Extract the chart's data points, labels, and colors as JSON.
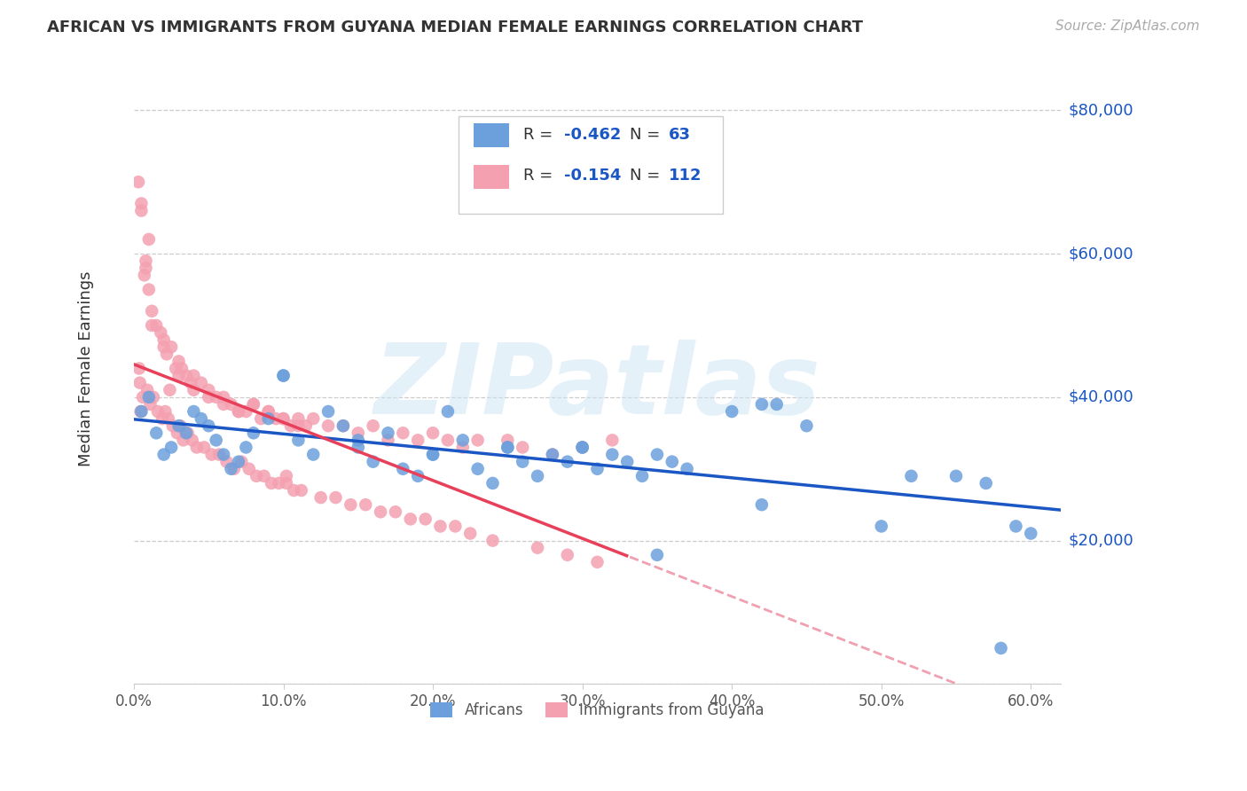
{
  "title": "AFRICAN VS IMMIGRANTS FROM GUYANA MEDIAN FEMALE EARNINGS CORRELATION CHART",
  "source": "Source: ZipAtlas.com",
  "ylabel": "Median Female Earnings",
  "ylabel_ticks": [
    0,
    20000,
    40000,
    60000,
    80000
  ],
  "ylabel_labels": [
    "",
    "$20,000",
    "$40,000",
    "$60,000",
    "$80,000"
  ],
  "xlim": [
    0.0,
    62.0
  ],
  "ylim": [
    0,
    88000
  ],
  "watermark": "ZIPatlas",
  "legend_label1": "Africans",
  "legend_label2": "Immigrants from Guyana",
  "r1": "-0.462",
  "n1": "63",
  "r2": "-0.154",
  "n2": "112",
  "blue_color": "#6ca0dc",
  "blue_dark": "#1a56c4",
  "pink_color": "#f4a0b0",
  "pink_dark": "#e8405a",
  "blue_scatter_x": [
    0.5,
    1.0,
    1.5,
    2.0,
    2.5,
    3.0,
    3.5,
    4.0,
    4.5,
    5.0,
    5.5,
    6.0,
    6.5,
    7.0,
    7.5,
    8.0,
    9.0,
    10.0,
    11.0,
    12.0,
    13.0,
    14.0,
    15.0,
    16.0,
    17.0,
    18.0,
    19.0,
    20.0,
    21.0,
    22.0,
    23.0,
    24.0,
    25.0,
    26.0,
    27.0,
    28.0,
    29.0,
    30.0,
    31.0,
    32.0,
    33.0,
    34.0,
    35.0,
    36.0,
    37.0,
    40.0,
    42.0,
    43.0,
    45.0,
    50.0,
    52.0,
    55.0,
    57.0,
    58.0,
    59.0,
    60.0,
    42.0,
    35.0,
    20.0,
    10.0,
    30.0,
    25.0,
    15.0
  ],
  "blue_scatter_y": [
    38000,
    40000,
    35000,
    32000,
    33000,
    36000,
    35000,
    38000,
    37000,
    36000,
    34000,
    32000,
    30000,
    31000,
    33000,
    35000,
    37000,
    43000,
    34000,
    32000,
    38000,
    36000,
    33000,
    31000,
    35000,
    30000,
    29000,
    32000,
    38000,
    34000,
    30000,
    28000,
    33000,
    31000,
    29000,
    32000,
    31000,
    33000,
    30000,
    32000,
    31000,
    29000,
    32000,
    31000,
    30000,
    38000,
    25000,
    39000,
    36000,
    22000,
    29000,
    29000,
    28000,
    5000,
    22000,
    21000,
    39000,
    18000,
    32000,
    43000,
    33000,
    33000,
    34000
  ],
  "pink_scatter_x": [
    0.3,
    0.5,
    0.7,
    0.8,
    1.0,
    1.2,
    1.5,
    1.8,
    2.0,
    2.2,
    2.5,
    2.8,
    3.0,
    3.2,
    3.5,
    3.8,
    4.0,
    4.5,
    5.0,
    5.5,
    6.0,
    6.5,
    7.0,
    7.5,
    8.0,
    8.5,
    9.0,
    9.5,
    10.0,
    10.5,
    11.0,
    11.5,
    12.0,
    13.0,
    14.0,
    15.0,
    16.0,
    17.0,
    18.0,
    19.0,
    20.0,
    21.0,
    22.0,
    23.0,
    25.0,
    26.0,
    28.0,
    30.0,
    32.0,
    0.4,
    0.6,
    0.9,
    1.1,
    1.3,
    1.6,
    1.9,
    2.1,
    2.3,
    2.6,
    2.9,
    3.1,
    3.3,
    3.6,
    3.9,
    4.2,
    4.7,
    5.2,
    5.7,
    6.2,
    6.7,
    7.2,
    7.7,
    8.2,
    8.7,
    9.2,
    9.7,
    10.2,
    10.7,
    11.2,
    12.5,
    13.5,
    14.5,
    15.5,
    16.5,
    17.5,
    18.5,
    19.5,
    20.5,
    21.5,
    22.5,
    24.0,
    27.0,
    29.0,
    31.0,
    10.2,
    2.4,
    0.35,
    0.45,
    1.0,
    0.5,
    0.8,
    1.2,
    5.0,
    2.0,
    3.0,
    4.0,
    6.0,
    7.0,
    8.0,
    9.0,
    10.0,
    11.0
  ],
  "pink_scatter_y": [
    70000,
    66000,
    57000,
    58000,
    55000,
    52000,
    50000,
    49000,
    48000,
    46000,
    47000,
    44000,
    45000,
    44000,
    43000,
    42000,
    43000,
    42000,
    41000,
    40000,
    40000,
    39000,
    38000,
    38000,
    39000,
    37000,
    38000,
    37000,
    37000,
    36000,
    37000,
    36000,
    37000,
    36000,
    36000,
    35000,
    36000,
    34000,
    35000,
    34000,
    35000,
    34000,
    33000,
    34000,
    34000,
    33000,
    32000,
    33000,
    34000,
    42000,
    40000,
    41000,
    39000,
    40000,
    38000,
    37000,
    38000,
    37000,
    36000,
    35000,
    36000,
    34000,
    35000,
    34000,
    33000,
    33000,
    32000,
    32000,
    31000,
    30000,
    31000,
    30000,
    29000,
    29000,
    28000,
    28000,
    28000,
    27000,
    27000,
    26000,
    26000,
    25000,
    25000,
    24000,
    24000,
    23000,
    23000,
    22000,
    22000,
    21000,
    20000,
    19000,
    18000,
    17000,
    29000,
    41000,
    44000,
    38000,
    62000,
    67000,
    59000,
    50000,
    40000,
    47000,
    43000,
    41000,
    39000,
    38000,
    39000,
    38000,
    37000,
    36000
  ]
}
